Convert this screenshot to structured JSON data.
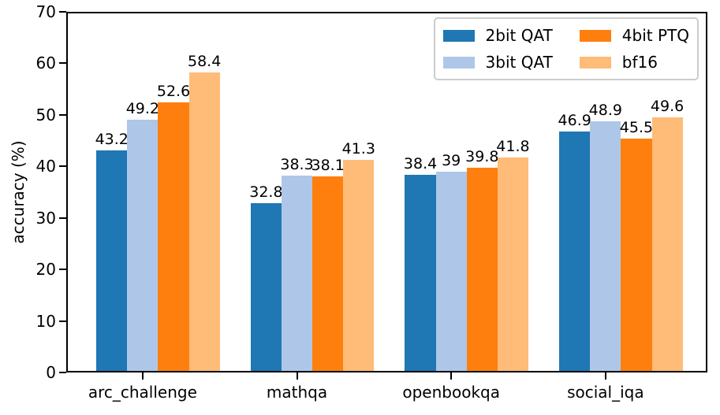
{
  "chart_data": {
    "type": "bar",
    "title": "",
    "xlabel": "",
    "ylabel": "accuracy (%)",
    "ylim": [
      0,
      70
    ],
    "yticks": [
      0,
      10,
      20,
      30,
      40,
      50,
      60,
      70
    ],
    "grid": false,
    "legend": {
      "position": "upper right",
      "ncol": 2,
      "order": "column-major"
    },
    "axis_color": "#000000",
    "legend_border_color": "#cccccc",
    "categories": [
      "arc_challenge",
      "mathqa",
      "openbookqa",
      "social_iqa"
    ],
    "series": [
      {
        "name": "2bit QAT",
        "color": "#1f77b4",
        "values": [
          43.2,
          32.8,
          38.4,
          46.9
        ],
        "labels": [
          "43.2",
          "32.8",
          "38.4",
          "46.9"
        ]
      },
      {
        "name": "3bit QAT",
        "color": "#aec7e8",
        "values": [
          49.2,
          38.3,
          39,
          48.9
        ],
        "labels": [
          "49.2",
          "38.3",
          "39",
          "48.9"
        ]
      },
      {
        "name": "4bit PTQ",
        "color": "#ff7f0e",
        "values": [
          52.6,
          38.1,
          39.8,
          45.5
        ],
        "labels": [
          "52.6",
          "38.1",
          "39.8",
          "45.5"
        ]
      },
      {
        "name": "bf16",
        "color": "#ffbb78",
        "values": [
          58.4,
          41.3,
          41.8,
          49.6
        ],
        "labels": [
          "58.4",
          "41.3",
          "41.8",
          "49.6"
        ]
      }
    ]
  }
}
